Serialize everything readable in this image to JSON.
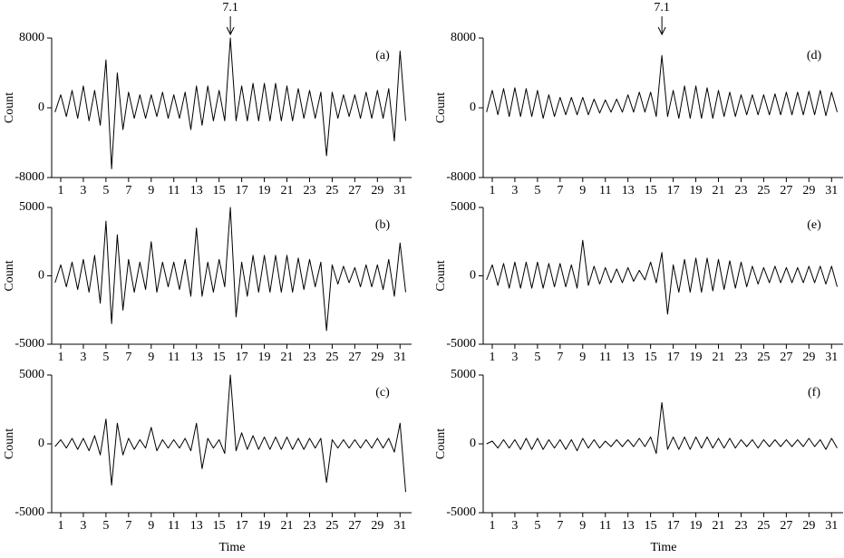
{
  "chart_data": [
    {
      "type": "line",
      "label": "(a)",
      "ylabel": "Count",
      "annotation": {
        "text": "7.1",
        "x": 16
      },
      "xlim": [
        0.2,
        32.1
      ],
      "xticks": [
        1,
        3,
        5,
        7,
        9,
        11,
        13,
        15,
        17,
        19,
        21,
        23,
        25,
        27,
        29,
        31
      ],
      "ylim": [
        -8000,
        8000
      ],
      "yticks": [
        -8000,
        0,
        8000
      ],
      "x": [
        0.5,
        1,
        1.5,
        2,
        2.5,
        3,
        3.5,
        4,
        4.5,
        5,
        5.5,
        6,
        6.5,
        7,
        7.5,
        8,
        8.5,
        9,
        9.5,
        10,
        10.5,
        11,
        11.5,
        12,
        12.5,
        13,
        13.5,
        14,
        14.5,
        15,
        15.5,
        16,
        16.5,
        17,
        17.5,
        18,
        18.5,
        19,
        19.5,
        20,
        20.5,
        21,
        21.5,
        22,
        22.5,
        23,
        23.5,
        24,
        24.5,
        25,
        25.5,
        26,
        26.5,
        27,
        27.5,
        28,
        28.5,
        29,
        29.5,
        30,
        30.5,
        31,
        31.5
      ],
      "values": [
        -500,
        1500,
        -1000,
        2000,
        -1200,
        2500,
        -1500,
        2000,
        -2000,
        5500,
        -7000,
        4000,
        -2500,
        1800,
        -1200,
        1500,
        -1200,
        1500,
        -1000,
        1800,
        -1200,
        1500,
        -1200,
        1800,
        -2500,
        2500,
        -2000,
        2500,
        -1500,
        2000,
        -1500,
        8000,
        -1500,
        2500,
        -1500,
        2800,
        -1500,
        2800,
        -1500,
        2800,
        -1500,
        2500,
        -1500,
        2200,
        -1200,
        2000,
        -1200,
        1800,
        -5500,
        1800,
        -1200,
        1500,
        -1000,
        1500,
        -1200,
        1800,
        -1200,
        2000,
        -1200,
        2200,
        -3800,
        6500,
        -1500
      ],
      "color": "#000000"
    },
    {
      "type": "line",
      "label": "(b)",
      "ylabel": "Count",
      "xlim": [
        0.2,
        32.1
      ],
      "xticks": [
        1,
        3,
        5,
        7,
        9,
        11,
        13,
        15,
        17,
        19,
        21,
        23,
        25,
        27,
        29,
        31
      ],
      "ylim": [
        -5000,
        5000
      ],
      "yticks": [
        -5000,
        0,
        5000
      ],
      "x": [
        0.5,
        1,
        1.5,
        2,
        2.5,
        3,
        3.5,
        4,
        4.5,
        5,
        5.5,
        6,
        6.5,
        7,
        7.5,
        8,
        8.5,
        9,
        9.5,
        10,
        10.5,
        11,
        11.5,
        12,
        12.5,
        13,
        13.5,
        14,
        14.5,
        15,
        15.5,
        16,
        16.5,
        17,
        17.5,
        18,
        18.5,
        19,
        19.5,
        20,
        20.5,
        21,
        21.5,
        22,
        22.5,
        23,
        23.5,
        24,
        24.5,
        25,
        25.5,
        26,
        26.5,
        27,
        27.5,
        28,
        28.5,
        29,
        29.5,
        30,
        30.5,
        31,
        31.5
      ],
      "values": [
        -500,
        800,
        -800,
        1000,
        -1000,
        1200,
        -1200,
        1500,
        -2000,
        4000,
        -3500,
        3000,
        -2500,
        1200,
        -1200,
        1000,
        -1000,
        2500,
        -1200,
        1000,
        -800,
        1000,
        -1000,
        1200,
        -1500,
        3500,
        -1500,
        1000,
        -1200,
        1200,
        -800,
        5000,
        -3000,
        1000,
        -1500,
        1500,
        -1200,
        1500,
        -1200,
        1500,
        -1200,
        1500,
        -1200,
        1300,
        -1000,
        1200,
        -800,
        1000,
        -4000,
        800,
        -600,
        700,
        -500,
        600,
        -800,
        800,
        -800,
        800,
        -1000,
        1200,
        -1500,
        2400,
        -1200
      ],
      "color": "#000000"
    },
    {
      "type": "line",
      "label": "(c)",
      "ylabel": "Count",
      "xlabel": "Time",
      "xlim": [
        0.2,
        32.1
      ],
      "xticks": [
        1,
        3,
        5,
        7,
        9,
        11,
        13,
        15,
        17,
        19,
        21,
        23,
        25,
        27,
        29,
        31
      ],
      "ylim": [
        -5000,
        5000
      ],
      "yticks": [
        -5000,
        0,
        5000
      ],
      "x": [
        0.5,
        1,
        1.5,
        2,
        2.5,
        3,
        3.5,
        4,
        4.5,
        5,
        5.5,
        6,
        6.5,
        7,
        7.5,
        8,
        8.5,
        9,
        9.5,
        10,
        10.5,
        11,
        11.5,
        12,
        12.5,
        13,
        13.5,
        14,
        14.5,
        15,
        15.5,
        16,
        16.5,
        17,
        17.5,
        18,
        18.5,
        19,
        19.5,
        20,
        20.5,
        21,
        21.5,
        22,
        22.5,
        23,
        23.5,
        24,
        24.5,
        25,
        25.5,
        26,
        26.5,
        27,
        27.5,
        28,
        28.5,
        29,
        29.5,
        30,
        30.5,
        31,
        31.5
      ],
      "values": [
        -200,
        300,
        -300,
        400,
        -400,
        400,
        -500,
        600,
        -800,
        1800,
        -3000,
        1500,
        -800,
        400,
        -400,
        300,
        -300,
        1200,
        -500,
        300,
        -300,
        300,
        -300,
        400,
        -500,
        1500,
        -1800,
        400,
        -300,
        300,
        -700,
        5000,
        -500,
        800,
        -400,
        600,
        -400,
        500,
        -400,
        500,
        -400,
        500,
        -400,
        400,
        -400,
        400,
        -300,
        400,
        -2800,
        300,
        -300,
        300,
        -300,
        300,
        -300,
        300,
        -300,
        400,
        -300,
        400,
        -600,
        1500,
        -3500
      ],
      "color": "#000000"
    },
    {
      "type": "line",
      "label": "(d)",
      "ylabel": "Count",
      "annotation": {
        "text": "7.1",
        "x": 16
      },
      "xlim": [
        0.2,
        32.1
      ],
      "xticks": [
        1,
        3,
        5,
        7,
        9,
        11,
        13,
        15,
        17,
        19,
        21,
        23,
        25,
        27,
        29,
        31
      ],
      "ylim": [
        -8000,
        8000
      ],
      "yticks": [
        -8000,
        0,
        8000
      ],
      "x": [
        0.5,
        1,
        1.5,
        2,
        2.5,
        3,
        3.5,
        4,
        4.5,
        5,
        5.5,
        6,
        6.5,
        7,
        7.5,
        8,
        8.5,
        9,
        9.5,
        10,
        10.5,
        11,
        11.5,
        12,
        12.5,
        13,
        13.5,
        14,
        14.5,
        15,
        15.5,
        16,
        16.5,
        17,
        17.5,
        18,
        18.5,
        19,
        19.5,
        20,
        20.5,
        21,
        21.5,
        22,
        22.5,
        23,
        23.5,
        24,
        24.5,
        25,
        25.5,
        26,
        26.5,
        27,
        27.5,
        28,
        28.5,
        29,
        29.5,
        30,
        30.5,
        31,
        31.5
      ],
      "values": [
        -500,
        2000,
        -800,
        2200,
        -1000,
        2300,
        -1000,
        2200,
        -1000,
        2000,
        -1200,
        1500,
        -1000,
        1200,
        -800,
        1200,
        -800,
        1200,
        -800,
        1000,
        -600,
        900,
        -500,
        1000,
        -500,
        1500,
        -500,
        1800,
        -500,
        1800,
        -1000,
        6000,
        -1000,
        2000,
        -1200,
        2500,
        -1200,
        2500,
        -1200,
        2300,
        -1200,
        2000,
        -1000,
        1800,
        -1000,
        1500,
        -800,
        1500,
        -800,
        1500,
        -800,
        1600,
        -800,
        1800,
        -800,
        1800,
        -800,
        1900,
        -800,
        2000,
        -900,
        1800,
        -500
      ],
      "color": "#000000"
    },
    {
      "type": "line",
      "label": "(e)",
      "ylabel": "Count",
      "xlim": [
        0.2,
        32.1
      ],
      "xticks": [
        1,
        3,
        5,
        7,
        9,
        11,
        13,
        15,
        17,
        19,
        21,
        23,
        25,
        27,
        29,
        31
      ],
      "ylim": [
        -5000,
        5000
      ],
      "yticks": [
        -5000,
        0,
        5000
      ],
      "x": [
        0.5,
        1,
        1.5,
        2,
        2.5,
        3,
        3.5,
        4,
        4.5,
        5,
        5.5,
        6,
        6.5,
        7,
        7.5,
        8,
        8.5,
        9,
        9.5,
        10,
        10.5,
        11,
        11.5,
        12,
        12.5,
        13,
        13.5,
        14,
        14.5,
        15,
        15.5,
        16,
        16.5,
        17,
        17.5,
        18,
        18.5,
        19,
        19.5,
        20,
        20.5,
        21,
        21.5,
        22,
        22.5,
        23,
        23.5,
        24,
        24.5,
        25,
        25.5,
        26,
        26.5,
        27,
        27.5,
        28,
        28.5,
        29,
        29.5,
        30,
        30.5,
        31,
        31.5
      ],
      "values": [
        -300,
        800,
        -700,
        900,
        -900,
        1000,
        -900,
        1000,
        -900,
        1000,
        -900,
        900,
        -800,
        900,
        -800,
        800,
        -900,
        2600,
        -700,
        700,
        -600,
        600,
        -500,
        500,
        -500,
        600,
        -400,
        400,
        -300,
        1000,
        -500,
        1700,
        -2800,
        800,
        -1200,
        1200,
        -1200,
        1300,
        -1200,
        1300,
        -1100,
        1200,
        -1000,
        1100,
        -900,
        1000,
        -800,
        700,
        -600,
        600,
        -500,
        700,
        -500,
        600,
        -500,
        600,
        -500,
        700,
        -500,
        700,
        -600,
        700,
        -800
      ],
      "color": "#000000"
    },
    {
      "type": "line",
      "label": "(f)",
      "ylabel": "Count",
      "xlabel": "Time",
      "xlim": [
        0.2,
        32.1
      ],
      "xticks": [
        1,
        3,
        5,
        7,
        9,
        11,
        13,
        15,
        17,
        19,
        21,
        23,
        25,
        27,
        29,
        31
      ],
      "ylim": [
        -5000,
        5000
      ],
      "yticks": [
        -5000,
        0,
        5000
      ],
      "x": [
        0.5,
        1,
        1.5,
        2,
        2.5,
        3,
        3.5,
        4,
        4.5,
        5,
        5.5,
        6,
        6.5,
        7,
        7.5,
        8,
        8.5,
        9,
        9.5,
        10,
        10.5,
        11,
        11.5,
        12,
        12.5,
        13,
        13.5,
        14,
        14.5,
        15,
        15.5,
        16,
        16.5,
        17,
        17.5,
        18,
        18.5,
        19,
        19.5,
        20,
        20.5,
        21,
        21.5,
        22,
        22.5,
        23,
        23.5,
        24,
        24.5,
        25,
        25.5,
        26,
        26.5,
        27,
        27.5,
        28,
        28.5,
        29,
        29.5,
        30,
        30.5,
        31,
        31.5
      ],
      "values": [
        0,
        200,
        -300,
        300,
        -300,
        300,
        -400,
        400,
        -400,
        400,
        -400,
        300,
        -300,
        300,
        -400,
        300,
        -500,
        400,
        -300,
        300,
        -300,
        200,
        -200,
        300,
        -200,
        300,
        -200,
        400,
        -200,
        500,
        -700,
        3000,
        -400,
        500,
        -400,
        500,
        -400,
        500,
        -300,
        500,
        -300,
        400,
        -300,
        400,
        -300,
        300,
        -200,
        300,
        -300,
        300,
        -200,
        300,
        -200,
        300,
        -200,
        300,
        -200,
        400,
        -200,
        300,
        -400,
        400,
        -300
      ],
      "color": "#000000"
    }
  ]
}
